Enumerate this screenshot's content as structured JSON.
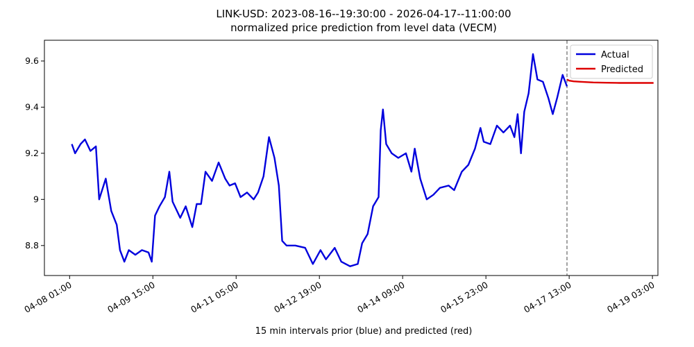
{
  "chart_data": {
    "type": "line",
    "title": "LINK-USD: 2023-08-16--19:30:00 - 2026-04-17--11:00:00",
    "subtitle": "normalized price prediction from level data (VECM)",
    "x_label": "15 min intervals prior (blue) and predicted (red)",
    "legend": "upper right",
    "vline": "04-17 12:00",
    "xlim": [
      "04-07 13:30",
      "04-19 05:30"
    ],
    "xticks": [
      "04-08 01:00",
      "04-09 15:00",
      "04-11 05:00",
      "04-12 19:00",
      "04-14 09:00",
      "04-15 23:00",
      "04-17 13:00",
      "04-19 03:00"
    ],
    "ylim": [
      8.67,
      9.69
    ],
    "yticks": [
      8.8,
      9.0,
      9.2,
      9.4,
      9.6
    ],
    "series": [
      {
        "name": "Actual",
        "color": "#0000dd",
        "x": [
          "04-08 02:00",
          "04-08 03:30",
          "04-08 06:00",
          "04-08 08:00",
          "04-08 10:30",
          "04-08 13:00",
          "04-08 14:30",
          "04-08 17:30",
          "04-08 20:00",
          "04-08 22:30",
          "04-09 00:00",
          "04-09 02:00",
          "04-09 04:00",
          "04-09 07:00",
          "04-09 10:00",
          "04-09 13:00",
          "04-09 14:30",
          "04-09 16:00",
          "04-09 18:00",
          "04-09 20:30",
          "04-09 22:30",
          "04-10 00:00",
          "04-10 02:00",
          "04-10 03:30",
          "04-10 06:00",
          "04-10 09:00",
          "04-10 11:00",
          "04-10 13:00",
          "04-10 15:00",
          "04-10 18:00",
          "04-10 21:00",
          "04-11 00:00",
          "04-11 02:00",
          "04-11 04:30",
          "04-11 07:00",
          "04-11 10:00",
          "04-11 13:00",
          "04-11 15:00",
          "04-11 17:30",
          "04-11 20:00",
          "04-11 22:30",
          "04-12 00:30",
          "04-12 02:00",
          "04-12 04:00",
          "04-12 08:00",
          "04-12 12:30",
          "04-12 16:00",
          "04-12 19:30",
          "04-12 22:00",
          "04-13 02:00",
          "04-13 05:00",
          "04-13 09:00",
          "04-13 12:30",
          "04-13 14:30",
          "04-13 17:00",
          "04-13 19:30",
          "04-13 22:00",
          "04-13 23:00",
          "04-14 00:00",
          "04-14 01:30",
          "04-14 04:00",
          "04-14 07:00",
          "04-14 10:30",
          "04-14 13:00",
          "04-14 14:30",
          "04-14 17:00",
          "04-14 20:00",
          "04-14 23:00",
          "04-15 02:00",
          "04-15 06:00",
          "04-15 08:30",
          "04-15 12:00",
          "04-15 15:00",
          "04-15 18:00",
          "04-15 20:30",
          "04-15 22:00",
          "04-16 01:00",
          "04-16 04:00",
          "04-16 07:00",
          "04-16 10:00",
          "04-16 12:00",
          "04-16 13:30",
          "04-16 15:00",
          "04-16 16:30",
          "04-16 18:30",
          "04-16 20:30",
          "04-16 22:30",
          "04-17 01:00",
          "04-17 03:30",
          "04-17 05:30",
          "04-17 07:30",
          "04-17 10:00",
          "04-17 12:00"
        ],
        "values": [
          9.24,
          9.2,
          9.24,
          9.26,
          9.21,
          9.23,
          9.0,
          9.09,
          8.95,
          8.89,
          8.78,
          8.73,
          8.78,
          8.76,
          8.78,
          8.77,
          8.73,
          8.93,
          8.97,
          9.01,
          9.12,
          8.99,
          8.95,
          8.92,
          8.97,
          8.88,
          8.98,
          8.98,
          9.12,
          9.08,
          9.16,
          9.09,
          9.06,
          9.07,
          9.01,
          9.03,
          9.0,
          9.03,
          9.1,
          9.27,
          9.18,
          9.06,
          8.82,
          8.8,
          8.8,
          8.79,
          8.72,
          8.78,
          8.74,
          8.79,
          8.73,
          8.71,
          8.72,
          8.81,
          8.85,
          8.97,
          9.01,
          9.3,
          9.39,
          9.24,
          9.2,
          9.18,
          9.2,
          9.12,
          9.22,
          9.09,
          9.0,
          9.02,
          9.05,
          9.06,
          9.04,
          9.12,
          9.15,
          9.22,
          9.31,
          9.25,
          9.24,
          9.32,
          9.29,
          9.32,
          9.27,
          9.37,
          9.2,
          9.38,
          9.46,
          9.63,
          9.52,
          9.51,
          9.44,
          9.37,
          9.44,
          9.54,
          9.49
        ]
      },
      {
        "name": "Predicted",
        "color": "#dd0000",
        "x": [
          "04-17 12:00",
          "04-17 13:00",
          "04-17 15:00",
          "04-17 18:00",
          "04-18 00:00",
          "04-18 06:00",
          "04-18 12:00",
          "04-18 18:00",
          "04-19 03:30"
        ],
        "values": [
          9.52,
          9.515,
          9.512,
          9.51,
          9.507,
          9.506,
          9.505,
          9.505,
          9.505
        ]
      }
    ]
  }
}
